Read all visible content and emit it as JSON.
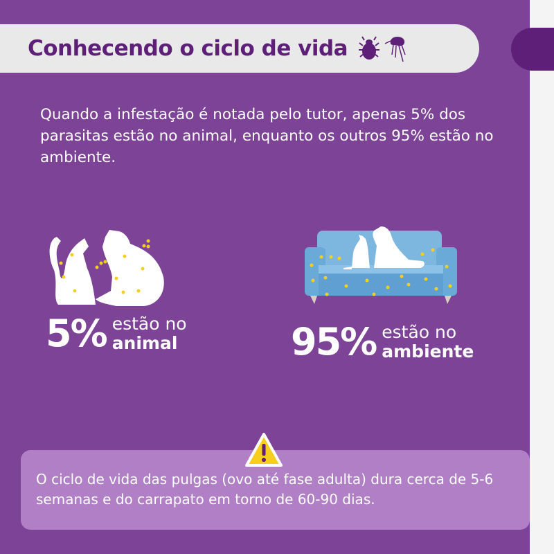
{
  "header": {
    "title": "Conhecendo o ciclo de vida",
    "icons": [
      "tick-icon",
      "flea-icon"
    ]
  },
  "intro": "Quando a infestação é notada pelo tutor, apenas 5% dos parasitas estão no animal, enquanto os outros 95% estão no ambiente.",
  "stats": [
    {
      "percent": "5%",
      "line1": "estão no",
      "line2": "animal",
      "value": 5
    },
    {
      "percent": "95%",
      "line1": "estão no",
      "line2": "ambiente",
      "value": 95
    }
  ],
  "note": {
    "text": "O ciclo de vida das pulgas (ovo até fase adulta) dura cerca de 5-6 semanas e do carrapato em torno de 60-90 dias.",
    "icon": "warning-icon"
  },
  "colors": {
    "background": "#7c4396",
    "title": "#5e1f78",
    "pill": "#e9e9e9",
    "note": "#b07fc6",
    "sofa": "#6aaad8",
    "flea_dots": "#f2d021",
    "warning": "#f6cf1e"
  }
}
